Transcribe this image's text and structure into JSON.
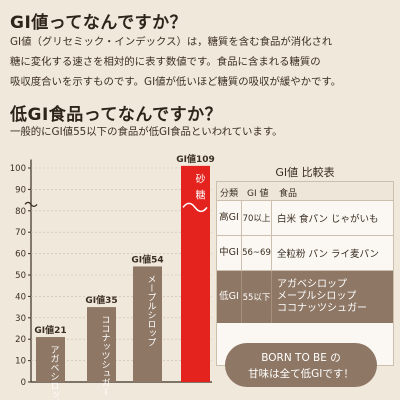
{
  "intro": {
    "heading": "GI値ってなんですか？",
    "lines": [
      "GI値（グリセミック・インデックス）は，糖質を含む食品が消化され",
      "糖に変化する速さを相対的に表す数値です。食品に含まれる糖質の",
      "吸収度合いを示すものです。GI値が低いほど糖質の吸収が緩やかです。"
    ]
  },
  "low_gi": {
    "heading": "低GI食品ってなんですか？",
    "subtitle": "一般的にGI値55以下の食品が低GI食品といわれています。"
  },
  "chart_data": {
    "type": "bar",
    "categories": [
      "アガベシロップ",
      "ココナッツシュガー",
      "メープルシロップ",
      "砂糖"
    ],
    "values": [
      21,
      35,
      54,
      109
    ],
    "value_labels": [
      "GI値21",
      "GI値35",
      "GI値54",
      "GI値109"
    ],
    "ylim": [
      0,
      109
    ],
    "yticks": [
      0,
      10,
      20,
      30,
      40,
      50,
      60,
      70,
      80,
      90,
      100
    ],
    "colors": {
      "bar": "#8e7764",
      "highlight": "#e4231e",
      "axis": "#3b2e22"
    },
    "axis_break": true
  },
  "table": {
    "title": "GI値 比較表",
    "headers": [
      "分類",
      "GI 値",
      "食品"
    ],
    "rows": [
      {
        "class": "高GI",
        "value": "70以上",
        "foods": [
          "白米 食パン じゃがいも"
        ]
      },
      {
        "class": "中GI",
        "value": "56~69",
        "foods": [
          "全粒粉 パン ライ麦パン"
        ]
      },
      {
        "class": "低GI",
        "value": "55以下",
        "foods": [
          "アガベシロップ",
          "メープルシロップ",
          "ココナッツシュガー"
        ]
      }
    ]
  },
  "bubble": {
    "line1": "BORN TO BE の",
    "line2": "甘味は全て低GIです！"
  }
}
